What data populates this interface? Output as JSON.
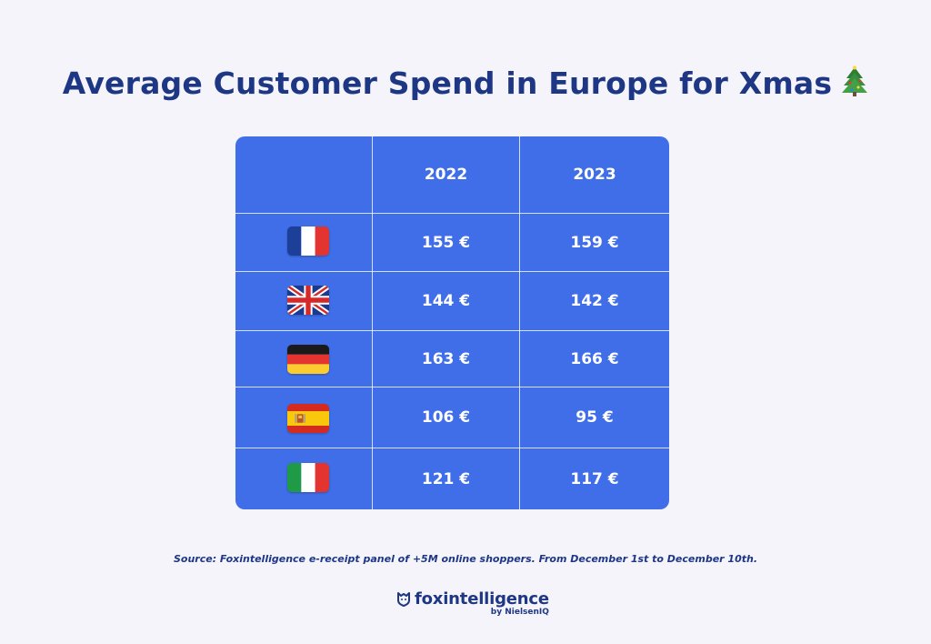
{
  "title": "Average Customer Spend in Europe for Xmas",
  "title_emoji": "christmas-tree-icon",
  "chart_data": {
    "type": "table",
    "columns": [
      "",
      "2022",
      "2023"
    ],
    "rows": [
      {
        "country": "France",
        "flag": "flag-france-icon",
        "values": [
          "155 €",
          "159 €"
        ]
      },
      {
        "country": "United Kingdom",
        "flag": "flag-uk-icon",
        "values": [
          "144 €",
          "142 €"
        ]
      },
      {
        "country": "Germany",
        "flag": "flag-germany-icon",
        "values": [
          "163 €",
          "166 €"
        ]
      },
      {
        "country": "Spain",
        "flag": "flag-spain-icon",
        "values": [
          "106 €",
          "95 €"
        ]
      },
      {
        "country": "Italy",
        "flag": "flag-italy-icon",
        "values": [
          "121 €",
          "117 €"
        ]
      }
    ]
  },
  "source": "Source: Foxintelligence e-receipt panel of +5M online shoppers. From December 1st to December 10th.",
  "logo": {
    "name": "foxintelligence",
    "by": "by NielsenIQ"
  },
  "colors": {
    "title": "#1e3785",
    "table_bg": "#3f6ee8",
    "background": "#f5f4fb"
  }
}
